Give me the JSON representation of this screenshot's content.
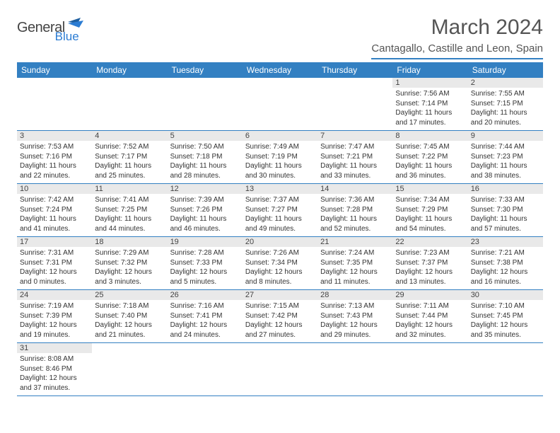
{
  "logo": {
    "general": "General",
    "blue": "Blue"
  },
  "title": "March 2024",
  "location": "Cantagallo, Castille and Leon, Spain",
  "daynames": [
    "Sunday",
    "Monday",
    "Tuesday",
    "Wednesday",
    "Thursday",
    "Friday",
    "Saturday"
  ],
  "colors": {
    "header_bg": "#3380c2",
    "border": "#3380c2",
    "daynum_bg": "#e9e9e9"
  },
  "weeks": [
    [
      null,
      null,
      null,
      null,
      null,
      {
        "n": "1",
        "r": "7:56 AM",
        "s": "7:14 PM",
        "d": "11 hours and 17 minutes."
      },
      {
        "n": "2",
        "r": "7:55 AM",
        "s": "7:15 PM",
        "d": "11 hours and 20 minutes."
      }
    ],
    [
      {
        "n": "3",
        "r": "7:53 AM",
        "s": "7:16 PM",
        "d": "11 hours and 22 minutes."
      },
      {
        "n": "4",
        "r": "7:52 AM",
        "s": "7:17 PM",
        "d": "11 hours and 25 minutes."
      },
      {
        "n": "5",
        "r": "7:50 AM",
        "s": "7:18 PM",
        "d": "11 hours and 28 minutes."
      },
      {
        "n": "6",
        "r": "7:49 AM",
        "s": "7:19 PM",
        "d": "11 hours and 30 minutes."
      },
      {
        "n": "7",
        "r": "7:47 AM",
        "s": "7:21 PM",
        "d": "11 hours and 33 minutes."
      },
      {
        "n": "8",
        "r": "7:45 AM",
        "s": "7:22 PM",
        "d": "11 hours and 36 minutes."
      },
      {
        "n": "9",
        "r": "7:44 AM",
        "s": "7:23 PM",
        "d": "11 hours and 38 minutes."
      }
    ],
    [
      {
        "n": "10",
        "r": "7:42 AM",
        "s": "7:24 PM",
        "d": "11 hours and 41 minutes."
      },
      {
        "n": "11",
        "r": "7:41 AM",
        "s": "7:25 PM",
        "d": "11 hours and 44 minutes."
      },
      {
        "n": "12",
        "r": "7:39 AM",
        "s": "7:26 PM",
        "d": "11 hours and 46 minutes."
      },
      {
        "n": "13",
        "r": "7:37 AM",
        "s": "7:27 PM",
        "d": "11 hours and 49 minutes."
      },
      {
        "n": "14",
        "r": "7:36 AM",
        "s": "7:28 PM",
        "d": "11 hours and 52 minutes."
      },
      {
        "n": "15",
        "r": "7:34 AM",
        "s": "7:29 PM",
        "d": "11 hours and 54 minutes."
      },
      {
        "n": "16",
        "r": "7:33 AM",
        "s": "7:30 PM",
        "d": "11 hours and 57 minutes."
      }
    ],
    [
      {
        "n": "17",
        "r": "7:31 AM",
        "s": "7:31 PM",
        "d": "12 hours and 0 minutes."
      },
      {
        "n": "18",
        "r": "7:29 AM",
        "s": "7:32 PM",
        "d": "12 hours and 3 minutes."
      },
      {
        "n": "19",
        "r": "7:28 AM",
        "s": "7:33 PM",
        "d": "12 hours and 5 minutes."
      },
      {
        "n": "20",
        "r": "7:26 AM",
        "s": "7:34 PM",
        "d": "12 hours and 8 minutes."
      },
      {
        "n": "21",
        "r": "7:24 AM",
        "s": "7:35 PM",
        "d": "12 hours and 11 minutes."
      },
      {
        "n": "22",
        "r": "7:23 AM",
        "s": "7:37 PM",
        "d": "12 hours and 13 minutes."
      },
      {
        "n": "23",
        "r": "7:21 AM",
        "s": "7:38 PM",
        "d": "12 hours and 16 minutes."
      }
    ],
    [
      {
        "n": "24",
        "r": "7:19 AM",
        "s": "7:39 PM",
        "d": "12 hours and 19 minutes."
      },
      {
        "n": "25",
        "r": "7:18 AM",
        "s": "7:40 PM",
        "d": "12 hours and 21 minutes."
      },
      {
        "n": "26",
        "r": "7:16 AM",
        "s": "7:41 PM",
        "d": "12 hours and 24 minutes."
      },
      {
        "n": "27",
        "r": "7:15 AM",
        "s": "7:42 PM",
        "d": "12 hours and 27 minutes."
      },
      {
        "n": "28",
        "r": "7:13 AM",
        "s": "7:43 PM",
        "d": "12 hours and 29 minutes."
      },
      {
        "n": "29",
        "r": "7:11 AM",
        "s": "7:44 PM",
        "d": "12 hours and 32 minutes."
      },
      {
        "n": "30",
        "r": "7:10 AM",
        "s": "7:45 PM",
        "d": "12 hours and 35 minutes."
      }
    ],
    [
      {
        "n": "31",
        "r": "8:08 AM",
        "s": "8:46 PM",
        "d": "12 hours and 37 minutes."
      },
      null,
      null,
      null,
      null,
      null,
      null
    ]
  ],
  "labels": {
    "sunrise": "Sunrise:",
    "sunset": "Sunset:",
    "daylight": "Daylight:"
  }
}
